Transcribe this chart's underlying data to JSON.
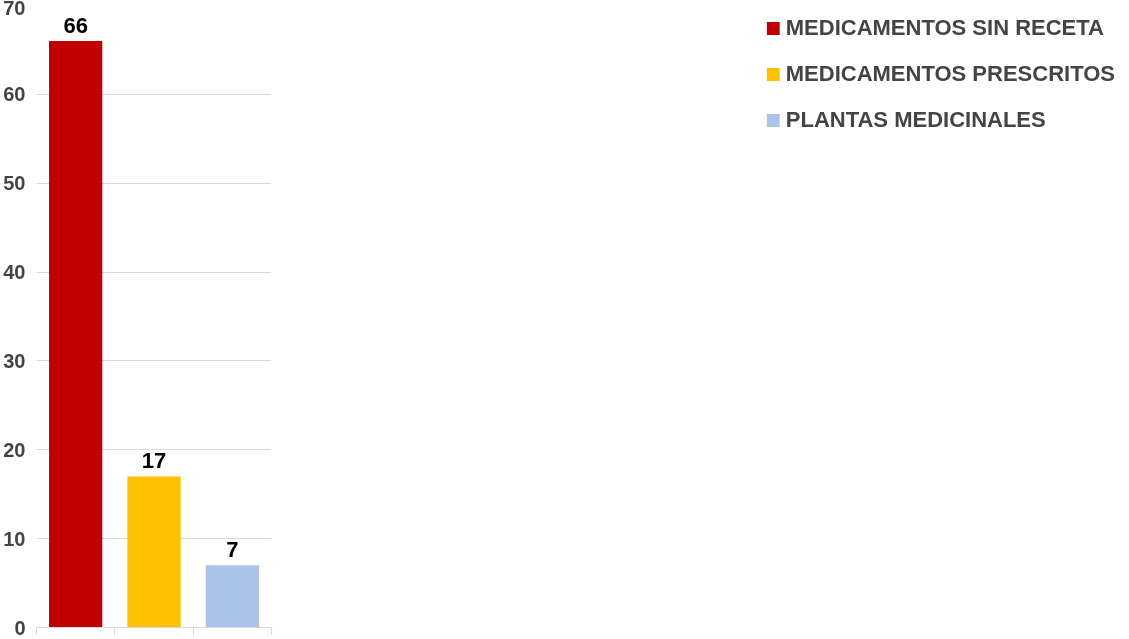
{
  "chart_data": {
    "type": "bar",
    "categories": [
      null,
      null,
      null
    ],
    "series": [
      {
        "name": "MEDICAMENTOS SIN RECETA",
        "color": "#c00000",
        "values": [
          66,
          null,
          null
        ]
      },
      {
        "name": "MEDICAMENTOS PRESCRITOS",
        "color": "#ffc000",
        "values": [
          null,
          17,
          null
        ]
      },
      {
        "name": "PLANTAS MEDICINALES",
        "color": "#a9c4e8",
        "values": [
          null,
          null,
          7
        ]
      }
    ],
    "ylim": [
      0,
      70
    ],
    "yticks": [
      0,
      10,
      20,
      30,
      40,
      50,
      60,
      70
    ],
    "grid": "y",
    "legend": "right",
    "data_labels": true
  }
}
